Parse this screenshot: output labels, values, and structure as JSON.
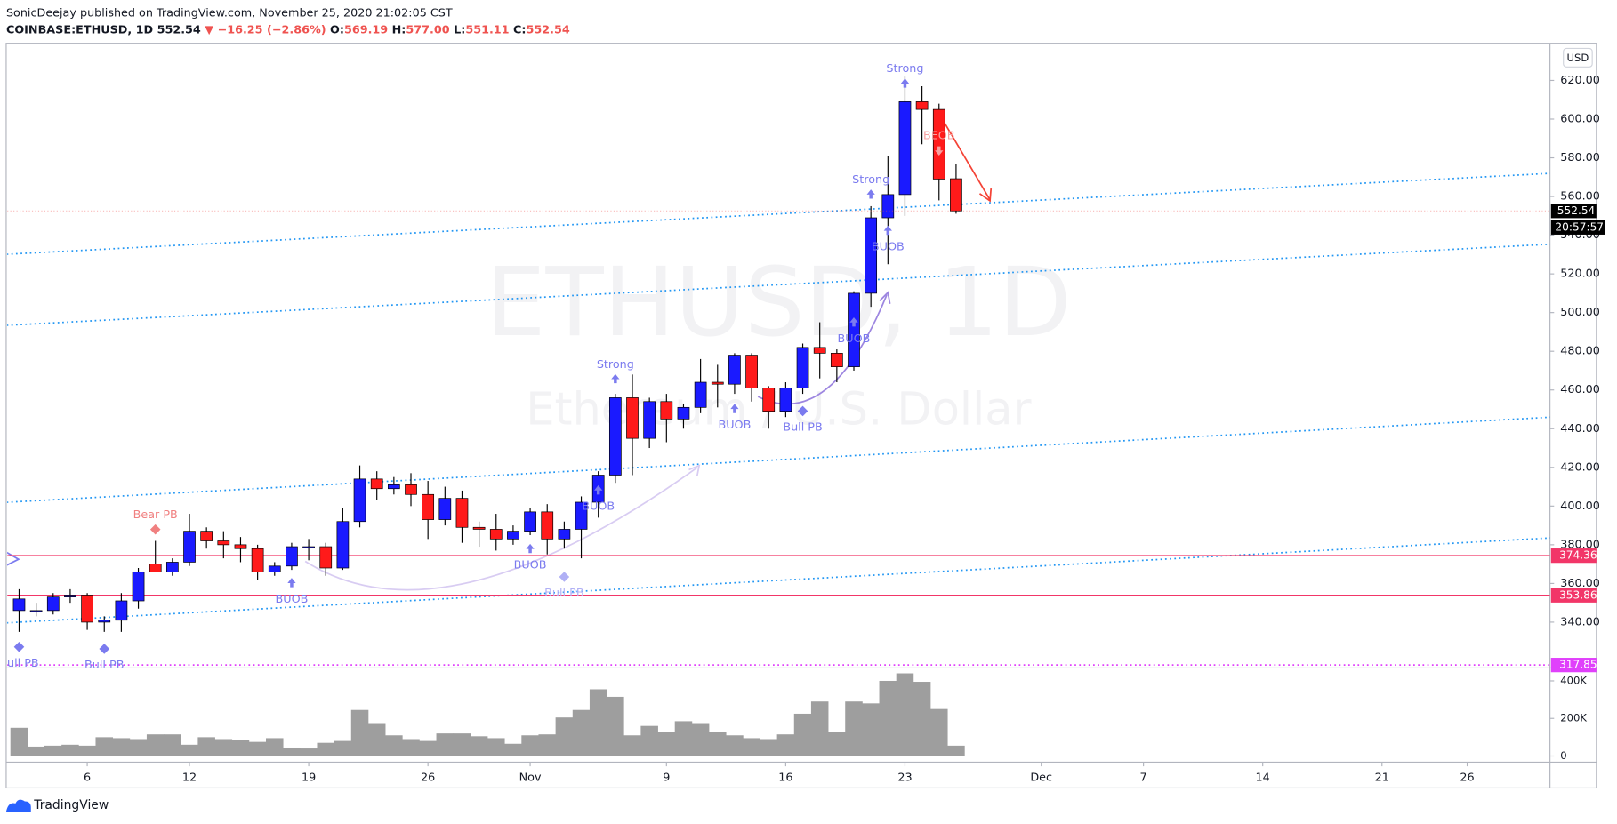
{
  "header": {
    "byline": "SonicDeejay published on TradingView.com, November 25, 2020 21:02:05 CST",
    "symbol": "COINBASE:ETHUSD, 1D",
    "last": "552.54",
    "change": "▼ −16.25 (−2.86%)",
    "ohlc": [
      [
        "O:",
        "569.19"
      ],
      [
        "H:",
        "577.00"
      ],
      [
        "L:",
        "551.11"
      ],
      [
        "C:",
        "552.54"
      ]
    ]
  },
  "footer": {
    "brand": "TradingView"
  },
  "chart_data": {
    "type": "candlestick",
    "watermark": [
      "ETHUSD, 1D",
      "Ethereum / U.S. Dollar"
    ],
    "currency": "USD",
    "countdown": "20:57:57",
    "up_color": "#1a1aff",
    "down_color": "#ff1a1a",
    "volume_color": "#9e9e9e",
    "x": [
      "2020-10-02",
      "2020-10-03",
      "2020-10-04",
      "2020-10-05",
      "2020-10-06",
      "2020-10-07",
      "2020-10-08",
      "2020-10-09",
      "2020-10-10",
      "2020-10-11",
      "2020-10-12",
      "2020-10-13",
      "2020-10-14",
      "2020-10-15",
      "2020-10-16",
      "2020-10-17",
      "2020-10-18",
      "2020-10-19",
      "2020-10-20",
      "2020-10-21",
      "2020-10-22",
      "2020-10-23",
      "2020-10-24",
      "2020-10-25",
      "2020-10-26",
      "2020-10-27",
      "2020-10-28",
      "2020-10-29",
      "2020-10-30",
      "2020-10-31",
      "2020-11-01",
      "2020-11-02",
      "2020-11-03",
      "2020-11-04",
      "2020-11-05",
      "2020-11-06",
      "2020-11-07",
      "2020-11-08",
      "2020-11-09",
      "2020-11-10",
      "2020-11-11",
      "2020-11-12",
      "2020-11-13",
      "2020-11-14",
      "2020-11-15",
      "2020-11-16",
      "2020-11-17",
      "2020-11-18",
      "2020-11-19",
      "2020-11-20",
      "2020-11-21",
      "2020-11-22",
      "2020-11-23",
      "2020-11-24",
      "2020-11-25",
      "2020-11-26"
    ],
    "open": [
      346,
      346,
      346,
      353,
      354,
      340,
      341,
      351,
      370,
      366,
      371,
      387,
      382,
      380,
      378,
      366,
      369,
      379,
      379,
      368,
      392,
      414,
      409,
      411,
      406,
      393,
      404,
      389,
      388,
      383,
      387,
      397,
      383,
      388,
      402,
      416,
      456,
      435,
      454,
      445,
      451,
      464,
      463,
      478,
      461,
      449,
      461,
      482,
      479,
      472,
      510,
      549,
      561,
      609,
      605,
      569.19
    ],
    "high": [
      357,
      350,
      355,
      357,
      355,
      343,
      355,
      368,
      382,
      373,
      396,
      389,
      387,
      384,
      380,
      371,
      381,
      383,
      381,
      399,
      421,
      418,
      415,
      417,
      413,
      410,
      408,
      392,
      396,
      390,
      399,
      401,
      392,
      405,
      418,
      458,
      468,
      456,
      458,
      453,
      476,
      473,
      479,
      479,
      462,
      464,
      484,
      495,
      481,
      511,
      555,
      581,
      622,
      617,
      608,
      577
    ],
    "low": [
      335,
      343,
      344,
      350,
      336,
      335,
      335,
      347,
      366,
      364,
      369,
      378,
      373,
      371,
      362,
      364,
      367,
      372,
      364,
      367,
      389,
      403,
      406,
      400,
      383,
      390,
      381,
      379,
      377,
      380,
      385,
      375,
      378,
      373,
      394,
      412,
      416,
      430,
      433,
      440,
      448,
      451,
      458,
      454,
      440,
      446,
      458,
      466,
      464,
      470,
      503,
      525,
      550,
      587,
      558,
      551.11
    ],
    "close": [
      352,
      346,
      353,
      354,
      340,
      341,
      351,
      366,
      366,
      371,
      387,
      382,
      380,
      378,
      366,
      369,
      379,
      379,
      368,
      392,
      414,
      409,
      411,
      406,
      393,
      404,
      389,
      388,
      383,
      387,
      397,
      383,
      388,
      402,
      416,
      456,
      435,
      454,
      445,
      451,
      464,
      463,
      478,
      461,
      449,
      461,
      482,
      479,
      472,
      510,
      549,
      561,
      609,
      605,
      569,
      552.54
    ],
    "volume": [
      150000,
      50000,
      55000,
      60000,
      55000,
      100000,
      95000,
      90000,
      115000,
      115000,
      60000,
      100000,
      90000,
      85000,
      75000,
      95000,
      45000,
      40000,
      70000,
      80000,
      245000,
      175000,
      110000,
      90000,
      80000,
      120000,
      120000,
      105000,
      95000,
      65000,
      110000,
      115000,
      205000,
      245000,
      355000,
      315000,
      110000,
      160000,
      130000,
      185000,
      175000,
      130000,
      110000,
      95000,
      90000,
      115000,
      225000,
      290000,
      130000,
      290000,
      280000,
      400000,
      440000,
      395000,
      250000,
      55000
    ],
    "xlim": [
      "2020-10-01",
      "2020-12-31"
    ],
    "ylim": [
      316.6,
      639.2
    ],
    "volume_lim": [
      -33000,
      466000
    ],
    "xticks": [
      {
        "value": "2020-10-06",
        "label": "6"
      },
      {
        "value": "2020-10-12",
        "label": "12"
      },
      {
        "value": "2020-10-19",
        "label": "19"
      },
      {
        "value": "2020-10-26",
        "label": "26"
      },
      {
        "value": "2020-11-01",
        "label": "Nov"
      },
      {
        "value": "2020-11-09",
        "label": "9"
      },
      {
        "value": "2020-11-16",
        "label": "16"
      },
      {
        "value": "2020-11-23",
        "label": "23"
      },
      {
        "value": "2020-12-01",
        "label": "Dec"
      },
      {
        "value": "2020-12-07",
        "label": "7"
      },
      {
        "value": "2020-12-14",
        "label": "14"
      },
      {
        "value": "2020-12-21",
        "label": "21"
      },
      {
        "value": "2020-12-26",
        "label": "26"
      }
    ],
    "yticks": [
      {
        "value": 340,
        "label": "340.00"
      },
      {
        "value": 360,
        "label": "360.00"
      },
      {
        "value": 380,
        "label": "380.00"
      },
      {
        "value": 400,
        "label": "400.00"
      },
      {
        "value": 420,
        "label": "420.00"
      },
      {
        "value": 440,
        "label": "440.00"
      },
      {
        "value": 460,
        "label": "460.00"
      },
      {
        "value": 480,
        "label": "480.00"
      },
      {
        "value": 500,
        "label": "500.00"
      },
      {
        "value": 520,
        "label": "520.00"
      },
      {
        "value": 540,
        "label": "540.00"
      },
      {
        "value": 560,
        "label": "560.00"
      },
      {
        "value": 580,
        "label": "580.00"
      },
      {
        "value": 600,
        "label": "600.00"
      },
      {
        "value": 620,
        "label": "620.00"
      }
    ],
    "volume_ticks": [
      0,
      {
        "value": 200000,
        "label": "200K"
      },
      {
        "value": 400000,
        "label": "400K"
      }
    ],
    "levels": [
      {
        "price": 374.36,
        "color": "#f23668",
        "style": "solid"
      },
      {
        "price": 353.86,
        "color": "#f23668",
        "style": "solid"
      },
      {
        "price": 317.85,
        "color": "#e040fb",
        "style": "dotted"
      }
    ],
    "trendlines": [
      {
        "points": [
          [
            "2020-10-01",
            530
          ],
          [
            "2020-12-31",
            572
          ]
        ],
        "color": "#2196f3"
      },
      {
        "points": [
          [
            "2020-10-01",
            493.3
          ],
          [
            "2020-12-31",
            535.4
          ]
        ],
        "color": "#2196f3"
      },
      {
        "points": [
          [
            "2020-10-01",
            401.8
          ],
          [
            "2020-12-31",
            446
          ]
        ],
        "color": "#2196f3"
      },
      {
        "points": [
          [
            "2020-10-01",
            339.5
          ],
          [
            "2020-12-31",
            383.6
          ]
        ],
        "color": "#2196f3"
      }
    ],
    "annotations": [
      {
        "text": "Strong",
        "date": "2020-11-06",
        "price": 465.6,
        "marker": "arrow-up",
        "text_pos": "above",
        "color": "#7b7bef"
      },
      {
        "text": "Strong",
        "date": "2020-11-21",
        "price": 561,
        "marker": "arrow-up",
        "text_pos": "above",
        "color": "#7b7bef"
      },
      {
        "text": "Strong",
        "date": "2020-11-23",
        "price": 618.4,
        "marker": "arrow-up",
        "text_pos": "above",
        "color": "#7b7bef"
      },
      {
        "text": "BUOB",
        "date": "2020-10-18",
        "price": 360.2,
        "marker": "arrow-up",
        "text_pos": "below",
        "color": "#7b7bef"
      },
      {
        "text": "BUOB",
        "date": "2020-11-01",
        "price": 377.8,
        "marker": "arrow-up",
        "text_pos": "below",
        "color": "#7b7bef"
      },
      {
        "text": "BUOB",
        "date": "2020-11-05",
        "price": 408.1,
        "marker": "arrow-up",
        "text_pos": "below",
        "color": "#7b7bef"
      },
      {
        "text": "BUOB",
        "date": "2020-11-13",
        "price": 450.2,
        "marker": "arrow-up",
        "text_pos": "below",
        "color": "#7b7bef"
      },
      {
        "text": "BUOB",
        "date": "2020-11-20",
        "price": 494.9,
        "marker": "arrow-up",
        "text_pos": "below",
        "color": "#7b7bef"
      },
      {
        "text": "BUOB",
        "date": "2020-11-22",
        "price": 542.3,
        "marker": "arrow-up",
        "text_pos": "below",
        "color": "#7b7bef"
      },
      {
        "text": "BEOB",
        "date": "2020-11-25",
        "price": 583.8,
        "marker": "arrow-down",
        "text_pos": "above",
        "color": "#f7a0a0"
      },
      {
        "text": "Bull PB",
        "date": "2020-11-17",
        "price": 449.1,
        "marker": "diamond",
        "text_pos": "below",
        "color": "#7b7bef"
      },
      {
        "text": "Bear PB",
        "date": "2020-10-10",
        "price": 387.9,
        "marker": "diamond",
        "text_pos": "above",
        "color": "#f08080"
      },
      {
        "text": "Bull PB",
        "date": "2020-11-03",
        "price": 363.4,
        "marker": "diamond",
        "text_pos": "below",
        "color": "#b0b0f5"
      },
      {
        "text": "Bull PB",
        "date": "2020-10-02",
        "price": 327.2,
        "marker": "diamond",
        "text_pos": "below",
        "color": "#7b7bef"
      },
      {
        "text": "Bull PB",
        "date": "2020-10-07",
        "price": 326.2,
        "marker": "diamond",
        "text_pos": "below",
        "color": "#7b7bef"
      }
    ]
  }
}
